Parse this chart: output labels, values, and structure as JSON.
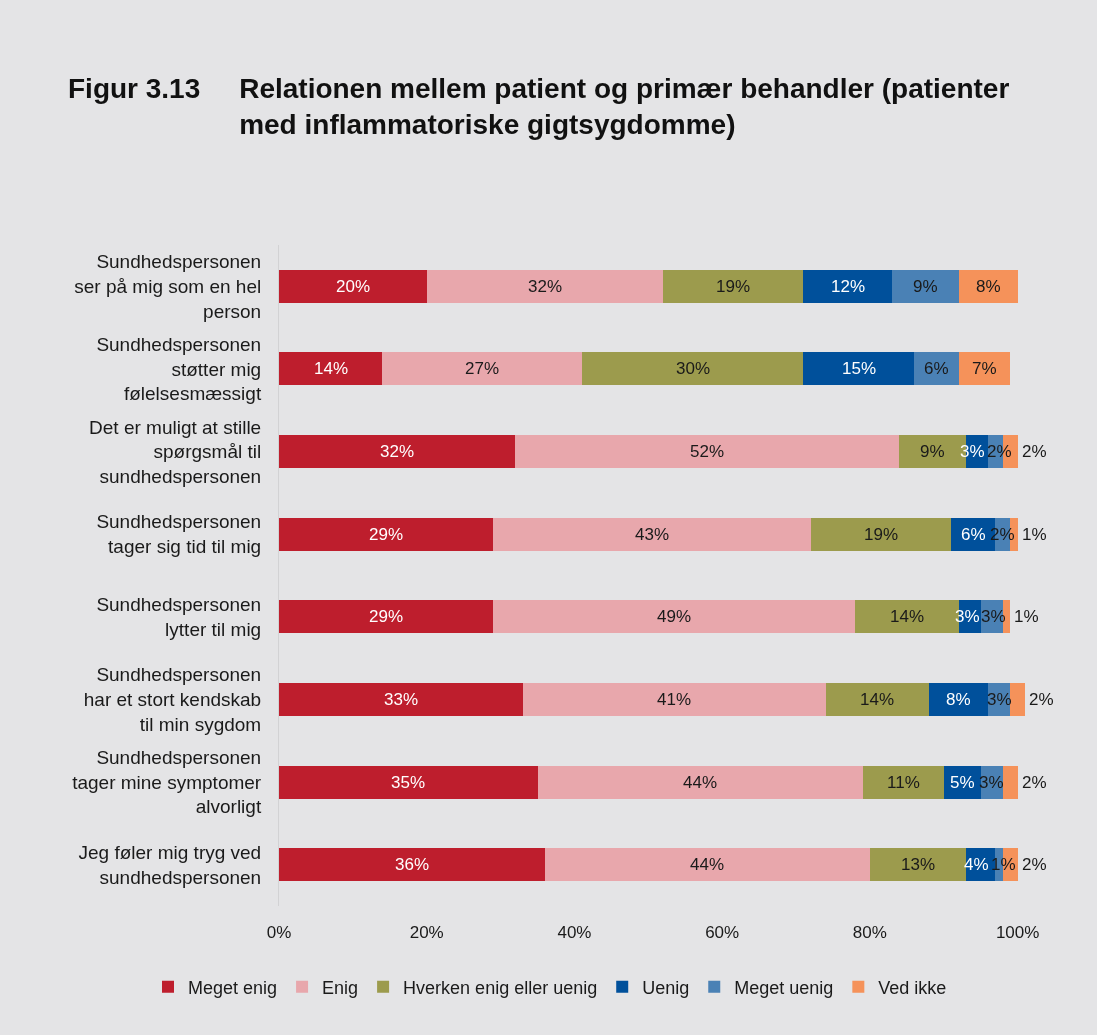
{
  "chart_data": {
    "type": "bar",
    "orientation": "horizontal",
    "stacked": true,
    "title": "Figur 3.13 Relationen mellem patient og primær behandler (patienter med inflammatoriske gigtsygdomme)",
    "categories": [
      "Sundhedspersonen ser på mig som en hel person",
      "Sundhedspersonen støtter mig følelsesmæssigt",
      "Det er muligt at stille spørgsmål til sundhedspersonen",
      "Sundhedspersonen tager sig tid til mig",
      "Sundhedspersonen lytter til mig",
      "Sundhedspersonen har et stort kendskab til min sygdom",
      "Sundhedspersonen tager mine symptomer alvorligt",
      "Jeg føler mig tryg ved sundhedspersonen"
    ],
    "series": [
      {
        "name": "Meget enig",
        "color": "#be1e2d",
        "values": [
          20,
          14,
          32,
          29,
          29,
          33,
          35,
          36
        ],
        "value_labels": [
          "20%",
          "14%",
          "32%",
          "29%",
          "29%",
          "33%",
          "35%",
          "36%"
        ]
      },
      {
        "name": "Enig",
        "color": "#e8a7ac",
        "values": [
          32,
          27,
          52,
          43,
          49,
          41,
          44,
          44
        ],
        "value_labels": [
          "32%",
          "27%",
          "52%",
          "43%",
          "49%",
          "41%",
          "44%",
          "44%"
        ]
      },
      {
        "name": "Hverken enig eller uenig",
        "color": "#9c9b4d",
        "values": [
          19,
          30,
          9,
          19,
          14,
          14,
          11,
          13
        ],
        "value_labels": [
          "19%",
          "30%",
          "9%",
          "19%",
          "14%",
          "14%",
          "11%",
          "13%"
        ]
      },
      {
        "name": "Uenig",
        "color": "#00509b",
        "values": [
          12,
          15,
          3,
          6,
          3,
          8,
          5,
          4
        ],
        "value_labels": [
          "12%",
          "15%",
          "3%",
          "6%",
          "3%",
          "8%",
          "5%",
          "4%"
        ]
      },
      {
        "name": "Meget uenig",
        "color": "#4a81b5",
        "values": [
          9,
          6,
          2,
          2,
          3,
          3,
          3,
          1
        ],
        "value_labels": [
          "9%",
          "6%",
          "2%",
          "2%",
          "3%",
          "3%",
          "3%",
          "1%"
        ]
      },
      {
        "name": "Ved ikke",
        "color": "#f5925a",
        "values": [
          8,
          7,
          2,
          1,
          1,
          2,
          2,
          2
        ],
        "value_labels": [
          "8%",
          "7%",
          "2%",
          "1%",
          "1%",
          "2%",
          "2%",
          "2%"
        ]
      }
    ],
    "xlim": [
      0,
      101
    ],
    "xticks": [
      {
        "value": 0,
        "label": "0%"
      },
      {
        "value": 20,
        "label": "20%"
      },
      {
        "value": 40,
        "label": "40%"
      },
      {
        "value": 60,
        "label": "60%"
      },
      {
        "value": 80,
        "label": "80%"
      },
      {
        "value": 100,
        "label": "100%"
      }
    ],
    "legend": "bottom"
  }
}
